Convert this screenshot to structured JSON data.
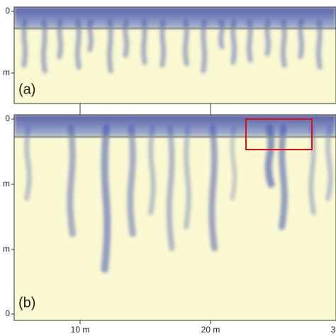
{
  "panels": [
    {
      "label": "(a)",
      "y_tick_labels": [
        "0",
        "m"
      ]
    },
    {
      "label": "(b)",
      "y_tick_labels": [
        "0",
        "m",
        "m",
        "0"
      ]
    }
  ],
  "x_tick_labels": [
    "10 m",
    "20 m",
    "3"
  ]
}
